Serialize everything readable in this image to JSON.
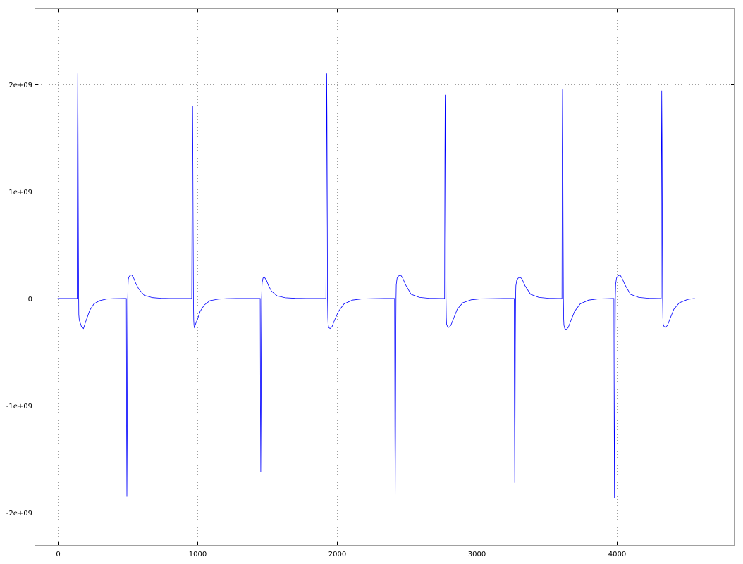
{
  "chart_data": {
    "type": "line",
    "title": "",
    "xlabel": "",
    "ylabel": "",
    "xlim": [
      -160,
      4840
    ],
    "ylim": [
      -2300000000.0,
      2700000000.0
    ],
    "grid": true,
    "legend": "none",
    "x_ticks": [
      0,
      1000,
      2000,
      3000,
      4000
    ],
    "x_tick_labels": [
      "0",
      "1000",
      "2000",
      "3000",
      "4000"
    ],
    "y_ticks": [
      2000000000.0,
      1000000000.0,
      0,
      -1000000000.0,
      -2000000000.0
    ],
    "y_tick_labels": [
      "2e+09",
      "1e+09",
      "0",
      "-1e+09",
      "-2e+09"
    ],
    "colors": {
      "series": "#0000ff",
      "grid": "#a0a0a0",
      "frame": "#a0a0a0"
    },
    "series": [
      {
        "name": "",
        "x": [
          0,
          140,
          142,
          144,
          146,
          148,
          150,
          152,
          155,
          160,
          170,
          185,
          200,
          230,
          260,
          300,
          350,
          400,
          480,
          492,
          494,
          496,
          498,
          500,
          502,
          504,
          506,
          510,
          518,
          530,
          545,
          560,
          580,
          620,
          680,
          740,
          800,
          880,
          960,
          964,
          966,
          968,
          970,
          972,
          974,
          976,
          978,
          982,
          990,
          1005,
          1020,
          1050,
          1090,
          1150,
          1210,
          1280,
          1360,
          1440,
          1450,
          1452,
          1454,
          1456,
          1458,
          1460,
          1462,
          1464,
          1470,
          1480,
          1495,
          1510,
          1530,
          1570,
          1630,
          1700,
          1780,
          1870,
          1920,
          1924,
          1926,
          1928,
          1930,
          1932,
          1934,
          1936,
          1940,
          1950,
          1965,
          1980,
          2010,
          2050,
          2110,
          2180,
          2260,
          2340,
          2400,
          2412,
          2414,
          2416,
          2418,
          2420,
          2422,
          2424,
          2430,
          2440,
          2455,
          2470,
          2490,
          2530,
          2590,
          2660,
          2740,
          2770,
          2772,
          2774,
          2776,
          2778,
          2780,
          2782,
          2784,
          2790,
          2800,
          2815,
          2830,
          2860,
          2900,
          2960,
          3030,
          3110,
          3190,
          3260,
          3268,
          3270,
          3272,
          3274,
          3276,
          3278,
          3280,
          3286,
          3296,
          3310,
          3325,
          3345,
          3385,
          3445,
          3515,
          3580,
          3610,
          3612,
          3614,
          3616,
          3618,
          3620,
          3622,
          3624,
          3630,
          3640,
          3655,
          3670,
          3700,
          3740,
          3800,
          3870,
          3940,
          3975,
          3982,
          3984,
          3986,
          3988,
          3990,
          3992,
          3994,
          4000,
          4010,
          4025,
          4040,
          4060,
          4100,
          4160,
          4230,
          4300,
          4320,
          4322,
          4324,
          4326,
          4328,
          4330,
          4332,
          4334,
          4340,
          4350,
          4365,
          4380,
          4410,
          4450,
          4510,
          4560
        ],
        "y": [
          0,
          0,
          1500000000.0,
          2100000000.0,
          1750000000.0,
          900000000.0,
          200000000.0,
          -150000000.0,
          -200000000.0,
          -220000000.0,
          -260000000.0,
          -280000000.0,
          -220000000.0,
          -110000000.0,
          -50000000.0,
          -20000000.0,
          -5000000.0,
          -1000000.0,
          0,
          0,
          -1200000000.0,
          -1850000000.0,
          -1300000000.0,
          -500000000.0,
          0,
          120000000.0,
          180000000.0,
          200000000.0,
          215000000.0,
          220000000.0,
          190000000.0,
          140000000.0,
          90000000.0,
          30000000.0,
          8000000.0,
          2000000.0,
          0,
          0,
          0,
          1600000000.0,
          1800000000.0,
          1300000000.0,
          600000000.0,
          0,
          -200000000.0,
          -250000000.0,
          -270000000.0,
          -260000000.0,
          -230000000.0,
          -180000000.0,
          -120000000.0,
          -60000000.0,
          -20000000.0,
          -6000000.0,
          -1000000.0,
          0,
          0,
          0,
          0,
          -1000000000.0,
          -1620000000.0,
          -1100000000.0,
          -400000000.0,
          0,
          100000000.0,
          150000000.0,
          190000000.0,
          200000000.0,
          170000000.0,
          120000000.0,
          70000000.0,
          25000000.0,
          7000000.0,
          1500000.0,
          0,
          0,
          0,
          1500000000.0,
          2100000000.0,
          1700000000.0,
          800000000.0,
          0,
          -180000000.0,
          -240000000.0,
          -270000000.0,
          -280000000.0,
          -260000000.0,
          -210000000.0,
          -120000000.0,
          -50000000.0,
          -15000000.0,
          -4000000.0,
          -1000000.0,
          0,
          0,
          0,
          -1200000000.0,
          -1840000000.0,
          -1300000000.0,
          -500000000.0,
          0,
          130000000.0,
          190000000.0,
          210000000.0,
          220000000.0,
          190000000.0,
          130000000.0,
          40000000.0,
          10000000.0,
          2000000.0,
          0,
          0,
          1300000000.0,
          1900000000.0,
          1500000000.0,
          700000000.0,
          0,
          -180000000.0,
          -240000000.0,
          -260000000.0,
          -270000000.0,
          -250000000.0,
          -200000000.0,
          -100000000.0,
          -40000000.0,
          -12000000.0,
          -3000000.0,
          -1000000.0,
          0,
          0,
          0,
          -1100000000.0,
          -1720000000.0,
          -1200000000.0,
          -450000000.0,
          0,
          120000000.0,
          170000000.0,
          190000000.0,
          200000000.0,
          180000000.0,
          120000000.0,
          40000000.0,
          10000000.0,
          2000000.0,
          0,
          0,
          1400000000.0,
          1950000000.0,
          1500000000.0,
          700000000.0,
          0,
          -190000000.0,
          -250000000.0,
          -280000000.0,
          -290000000.0,
          -270000000.0,
          -220000000.0,
          -120000000.0,
          -50000000.0,
          -15000000.0,
          -4000000.0,
          -1000000.0,
          0,
          0,
          -1200000000.0,
          -1860000000.0,
          -1300000000.0,
          -500000000.0,
          0,
          130000000.0,
          190000000.0,
          210000000.0,
          220000000.0,
          190000000.0,
          130000000.0,
          40000000.0,
          10000000.0,
          2000000.0,
          0,
          0,
          1300000000.0,
          1940000000.0,
          1500000000.0,
          700000000.0,
          0,
          -180000000.0,
          -240000000.0,
          -260000000.0,
          -270000000.0,
          -250000000.0,
          -200000000.0,
          -100000000.0,
          -40000000.0,
          -8000000.0,
          0
        ]
      }
    ]
  }
}
